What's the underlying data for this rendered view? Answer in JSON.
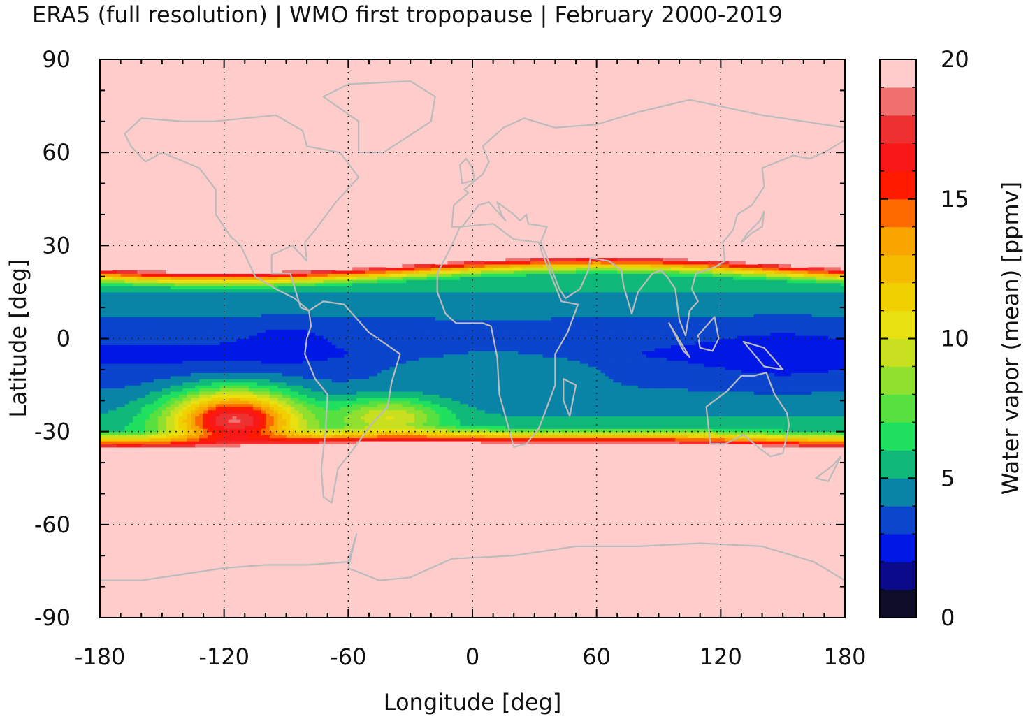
{
  "chart_data": {
    "type": "heatmap",
    "title": "ERA5 (full resolution) | WMO first tropopause | February 2000-2019",
    "xlabel": "Longitude [deg]",
    "ylabel": "Latitude [deg]",
    "xlim": [
      -180,
      180
    ],
    "ylim": [
      -90,
      90
    ],
    "xticks": [
      -180,
      -120,
      -60,
      0,
      60,
      120,
      180
    ],
    "yticks": [
      90,
      60,
      30,
      0,
      -30,
      -60,
      -90
    ],
    "xtick_labels": [
      "-180",
      "-120",
      "-60",
      "0",
      "60",
      "120",
      "180"
    ],
    "ytick_labels": [
      "90",
      "60",
      "30",
      "0",
      "-30",
      "-60",
      "-90"
    ],
    "grid": "dotted",
    "background_color": "#FFCCCC",
    "coastline_color": "#BBBBBB",
    "colorbar": {
      "label": "Water vapor (mean) [ppmv]",
      "range": [
        0,
        20
      ],
      "ticks": [
        0,
        5,
        10,
        15,
        20
      ],
      "tick_labels": [
        "0",
        "5",
        "10",
        "15",
        "20"
      ],
      "colors": [
        "#0d0d2a",
        "#0a0a8a",
        "#0018e6",
        "#0a45cc",
        "#0a84a6",
        "#10b87a",
        "#20e060",
        "#58e040",
        "#90e030",
        "#c8e020",
        "#e8e010",
        "#f0d000",
        "#f5bb00",
        "#f8a500",
        "#ff6a00",
        "#ff1a00",
        "#f81818",
        "#ee3030",
        "#f07070",
        "#ffcccc"
      ]
    },
    "field_summary": {
      "tropopause_belt": {
        "north_edge_lat": 25,
        "south_edge_lat": -35,
        "minimum_value_ppmv": 2
      },
      "polar_and_midlatitudes_value_ppmv": 20
    }
  }
}
